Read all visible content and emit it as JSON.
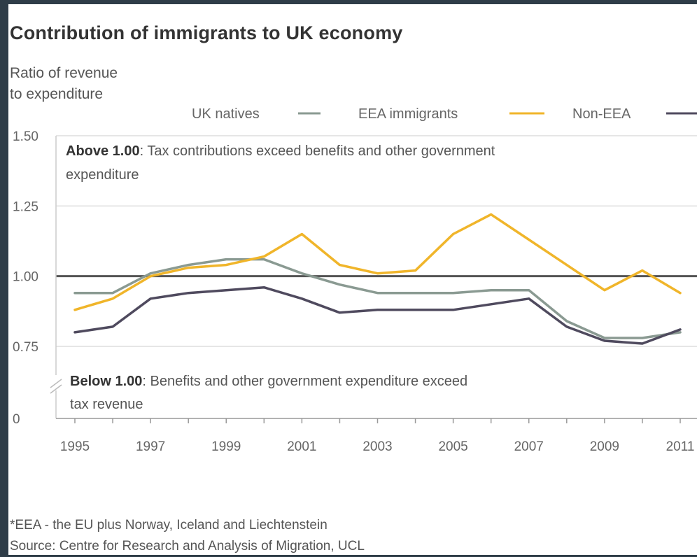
{
  "chart_data": {
    "type": "line",
    "title": "Contribution of immigrants to UK economy",
    "ylabel": "Ratio of revenue\nto expenditure",
    "xlabel": "",
    "x": [
      1995,
      1996,
      1997,
      1998,
      1999,
      2000,
      2001,
      2002,
      2003,
      2004,
      2005,
      2006,
      2007,
      2008,
      2009,
      2010,
      2011
    ],
    "x_ticks": [
      "1995",
      "1997",
      "1999",
      "2001",
      "2003",
      "2005",
      "2007",
      "2009",
      "2011"
    ],
    "y_ticks": [
      "0",
      "0.75",
      "1.00",
      "1.25",
      "1.50"
    ],
    "ylim": [
      0,
      1.5
    ],
    "series": [
      {
        "name": "UK natives",
        "color": "#8a9a92",
        "values": [
          0.94,
          0.94,
          1.01,
          1.04,
          1.06,
          1.06,
          1.01,
          0.97,
          0.94,
          0.94,
          0.94,
          0.95,
          0.95,
          0.84,
          0.78,
          0.78,
          0.8
        ]
      },
      {
        "name": "EEA immigrants",
        "color": "#f0b52a",
        "values": [
          0.88,
          0.92,
          1.0,
          1.03,
          1.04,
          1.07,
          1.15,
          1.04,
          1.01,
          1.02,
          1.15,
          1.22,
          1.13,
          1.04,
          0.95,
          1.02,
          0.94
        ]
      },
      {
        "name": "Non-EEA",
        "color": "#4f4a5e",
        "values": [
          0.8,
          0.82,
          0.92,
          0.94,
          0.95,
          0.96,
          0.92,
          0.87,
          0.88,
          0.88,
          0.88,
          0.9,
          0.92,
          0.82,
          0.77,
          0.76,
          0.81
        ]
      }
    ],
    "reference_line": {
      "value": 1.0,
      "color": "#555555"
    },
    "annotations": {
      "above": {
        "bold": "Above 1.00",
        "text": ": Tax contributions exceed benefits and other government",
        "text2": "expenditure"
      },
      "below": {
        "bold": "Below 1.00",
        "text": ": Benefits and other government expenditure exceed",
        "text2": "tax revenue"
      }
    },
    "legend_placement": "top-right",
    "grid": true
  },
  "footnote": {
    "line1": "*EEA - the EU plus Norway, Iceland and Liechtenstein",
    "line2": "Source: Centre for Research and Analysis of Migration, UCL"
  }
}
